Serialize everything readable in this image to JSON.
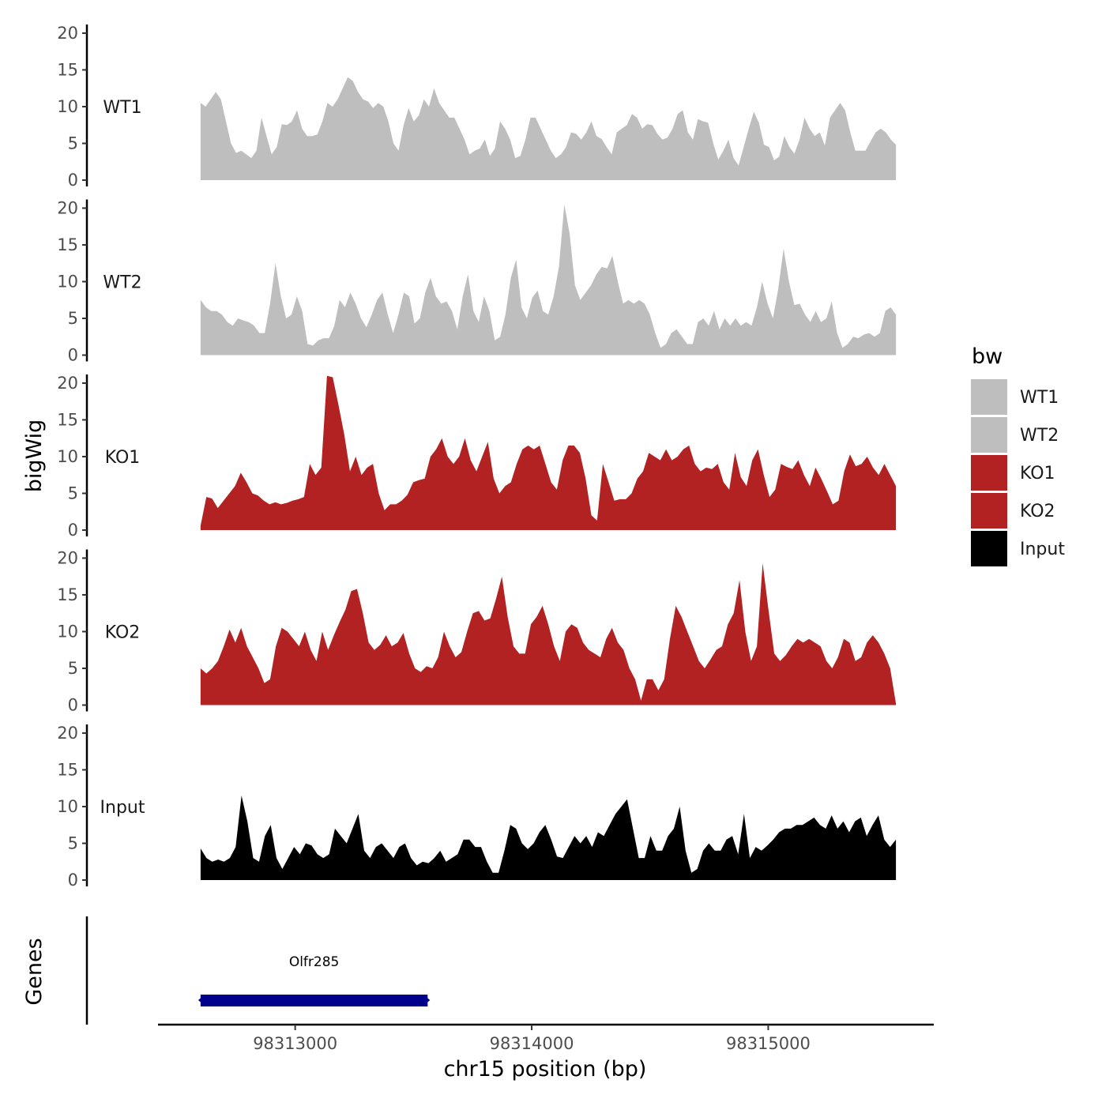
{
  "chart_data": {
    "type": "area",
    "ylabel": "bigWig",
    "genes_label": "Genes",
    "xlabel": "chr15 position (bp)",
    "x_range": [
      98312600,
      98315540
    ],
    "x_axis_limits": [
      98312420,
      98315700
    ],
    "x_ticks": [
      98313000,
      98314000,
      98315000
    ],
    "x_tick_labels": [
      "98313000",
      "98314000",
      "98315000"
    ],
    "ylim": [
      0,
      21.5
    ],
    "y_ticks": [
      0,
      5,
      10,
      15,
      20
    ],
    "y_tick_labels": [
      "0",
      "5",
      "10",
      "15",
      "20"
    ],
    "legend": {
      "title": "bw",
      "entries": [
        {
          "name": "WT1",
          "color": "#bebebe"
        },
        {
          "name": "WT2",
          "color": "#bebebe"
        },
        {
          "name": "KO1",
          "color": "#b22222"
        },
        {
          "name": "KO2",
          "color": "#b22222"
        },
        {
          "name": "Input",
          "color": "#000000"
        }
      ]
    },
    "series": [
      {
        "name": "WT1",
        "label": "WT1",
        "color": "#bebebe",
        "values": [
          10.5,
          10,
          11,
          12,
          11,
          8,
          5,
          3.7,
          4,
          3.5,
          3,
          4,
          8.5,
          6,
          3.5,
          4.5,
          7.6,
          7.5,
          8,
          9.5,
          7,
          6,
          6,
          6.2,
          8,
          10.5,
          10,
          11,
          12.5,
          14,
          13.5,
          12,
          11,
          10.7,
          9.8,
          10.5,
          10,
          8,
          5,
          4,
          7.5,
          9.8,
          8,
          8.8,
          11,
          10,
          12.5,
          10.5,
          9.5,
          8.5,
          8.5,
          7,
          5.5,
          3.5,
          4,
          4.3,
          5.5,
          3.3,
          4.3,
          8,
          7,
          5.5,
          3,
          3.3,
          5.5,
          8.5,
          8.5,
          7,
          5.5,
          4,
          3,
          3.5,
          4.5,
          6.5,
          6.3,
          5.5,
          6.5,
          8,
          6,
          5.6,
          4.5,
          3.5,
          6.5,
          7,
          7.5,
          9,
          8.5,
          7,
          7.6,
          7.5,
          6.3,
          5.5,
          5.8,
          7,
          9,
          9.5,
          6.5,
          5.5,
          8.3,
          8,
          7.8,
          5,
          2.8,
          4,
          5.5,
          3,
          2,
          4.5,
          7,
          9.3,
          7.8,
          4.8,
          4.5,
          2.7,
          3.2,
          6,
          4.5,
          3.6,
          5.5,
          8.5,
          7,
          6,
          6.5,
          4.7,
          8.5,
          9.5,
          10.5,
          9.5,
          6.5,
          4,
          4,
          4,
          5.3,
          6.5,
          7,
          6.5,
          5.5,
          4.8
        ]
      },
      {
        "name": "WT2",
        "label": "WT2",
        "color": "#bebebe",
        "values": [
          7.5,
          6.5,
          6,
          6,
          5.5,
          4.5,
          4,
          5,
          4.7,
          4.5,
          4,
          3,
          3,
          7,
          12.5,
          8,
          5,
          5.5,
          8,
          6,
          1.5,
          1.3,
          2,
          2.3,
          2.3,
          4,
          7.5,
          6.5,
          8.5,
          7,
          5,
          3.8,
          5.5,
          7.5,
          8.5,
          5.5,
          3,
          5.5,
          8.5,
          8,
          4.3,
          5,
          8.5,
          10.5,
          8,
          7,
          7.3,
          6,
          3.5,
          8,
          11,
          6,
          4.5,
          8,
          6,
          2,
          2.5,
          5.5,
          10.5,
          13,
          6.5,
          5,
          7.8,
          8.8,
          6,
          5.5,
          8,
          12,
          20.5,
          16.5,
          9.5,
          7.5,
          8.5,
          9.5,
          11,
          12,
          11.8,
          13.5,
          10,
          7,
          7.5,
          7,
          7.5,
          7,
          5.5,
          3,
          1,
          1.5,
          3,
          3.5,
          2.5,
          1.5,
          1.5,
          4.5,
          5,
          4,
          6,
          3.5,
          5,
          4,
          5,
          4,
          4.5,
          4,
          6.5,
          10,
          7,
          5,
          9,
          14.5,
          10,
          6.8,
          7,
          5.5,
          4.5,
          6,
          4.5,
          5,
          7.3,
          3,
          1,
          1.5,
          2.5,
          2.3,
          2.8,
          3,
          2.5,
          3,
          6,
          6.5,
          5.5
        ]
      },
      {
        "name": "KO1",
        "label": "KO1",
        "color": "#b22222",
        "values": [
          0.6,
          4.5,
          4.3,
          3,
          4,
          5,
          6,
          7.8,
          6.5,
          5,
          4.7,
          4,
          3.5,
          3.8,
          3.5,
          3.7,
          4,
          4.2,
          4.5,
          9,
          7.5,
          8.5,
          21,
          20.8,
          17,
          13,
          8,
          10,
          7.5,
          8.5,
          9,
          5,
          2.7,
          3.5,
          3.5,
          4,
          4.8,
          6.5,
          6.8,
          7,
          10,
          11,
          12.5,
          10,
          9,
          10,
          12.5,
          9.5,
          8,
          10,
          12,
          7,
          5,
          6,
          6.5,
          9,
          11,
          11.5,
          11,
          11.5,
          9,
          6.5,
          5.5,
          9.5,
          11.5,
          11.5,
          10.5,
          7,
          2,
          1.3,
          9,
          6.5,
          4,
          4.2,
          4.2,
          5,
          7,
          8,
          10.5,
          10,
          9.5,
          11,
          9.5,
          10,
          11,
          11.5,
          9,
          8,
          8.5,
          8.3,
          9,
          6.5,
          5.5,
          10.5,
          7.2,
          6,
          9.5,
          11,
          7.5,
          4.5,
          5.5,
          9,
          8.6,
          8.3,
          9.5,
          7.5,
          6,
          8.5,
          7,
          5.3,
          3.5,
          4,
          8,
          10.3,
          8.7,
          9,
          10,
          8.5,
          7.5,
          9,
          7.5,
          6
        ]
      },
      {
        "name": "KO2",
        "label": "KO2",
        "color": "#b22222",
        "values": [
          5,
          4.3,
          5,
          6,
          8,
          10.3,
          8.5,
          10.5,
          8,
          6.5,
          5,
          3,
          3.5,
          8,
          10.5,
          10,
          9,
          8,
          10,
          7.5,
          6,
          10,
          7.5,
          9.5,
          11.3,
          13,
          15.5,
          15.8,
          12.5,
          8.5,
          7.5,
          8.2,
          9.5,
          8,
          8.5,
          9.8,
          7,
          5,
          4.5,
          5.3,
          5,
          6.5,
          10,
          8,
          6.5,
          7.2,
          10,
          12.5,
          12.8,
          11.5,
          11.8,
          14.5,
          17.5,
          12,
          8,
          7,
          7,
          11,
          12,
          13.5,
          11,
          8,
          6,
          10,
          11,
          10.5,
          8.5,
          7.5,
          7,
          6.5,
          9,
          10.5,
          8.5,
          7.5,
          5,
          3.5,
          0.6,
          3.5,
          3.5,
          2,
          3.5,
          9,
          13.5,
          12,
          10,
          8,
          6,
          5,
          6.2,
          7.5,
          8,
          11,
          12.5,
          17,
          10,
          6,
          8,
          19.3,
          13,
          7,
          6,
          6.8,
          8,
          9,
          8.5,
          9,
          8.5,
          8,
          6,
          5,
          6.5,
          9,
          8.5,
          6,
          6.5,
          8.5,
          9.5,
          8.5,
          7,
          5,
          0.2
        ]
      },
      {
        "name": "Input",
        "label": "Input",
        "color": "#000000",
        "values": [
          4.3,
          3,
          2.5,
          2.8,
          2.5,
          3,
          4.5,
          11.5,
          8,
          3,
          2.5,
          6,
          7.5,
          3,
          1.5,
          3,
          4.5,
          3.5,
          5,
          4.7,
          3.5,
          3,
          3.5,
          7,
          6,
          5,
          7,
          9,
          4,
          3,
          4.5,
          5,
          4,
          3,
          4.5,
          5,
          3,
          2,
          2.5,
          2.3,
          3,
          4,
          2.5,
          3,
          3.5,
          5.5,
          5.5,
          4.5,
          4.5,
          2.5,
          1,
          1,
          4,
          7.5,
          7,
          5,
          4.2,
          5,
          6.5,
          7.5,
          5.5,
          3.2,
          3,
          4.5,
          6,
          5,
          6,
          4.5,
          6.5,
          6,
          7.5,
          9,
          10,
          11,
          7,
          3,
          3,
          6,
          4,
          4,
          6,
          7,
          10,
          4,
          1,
          1.5,
          4,
          5,
          4,
          4,
          5.5,
          6,
          3.5,
          9,
          3,
          4.5,
          4,
          4.7,
          5.5,
          6.5,
          7,
          7,
          7.5,
          7.5,
          8,
          8.5,
          7.5,
          7,
          8.8,
          7,
          8,
          6.5,
          8,
          8.5,
          6,
          7.5,
          8.8,
          5.5,
          4.5,
          5.5
        ]
      }
    ],
    "genes": [
      {
        "name": "Olfr285",
        "start": 98312600,
        "end": 98313560,
        "color": "#00008b"
      }
    ]
  }
}
